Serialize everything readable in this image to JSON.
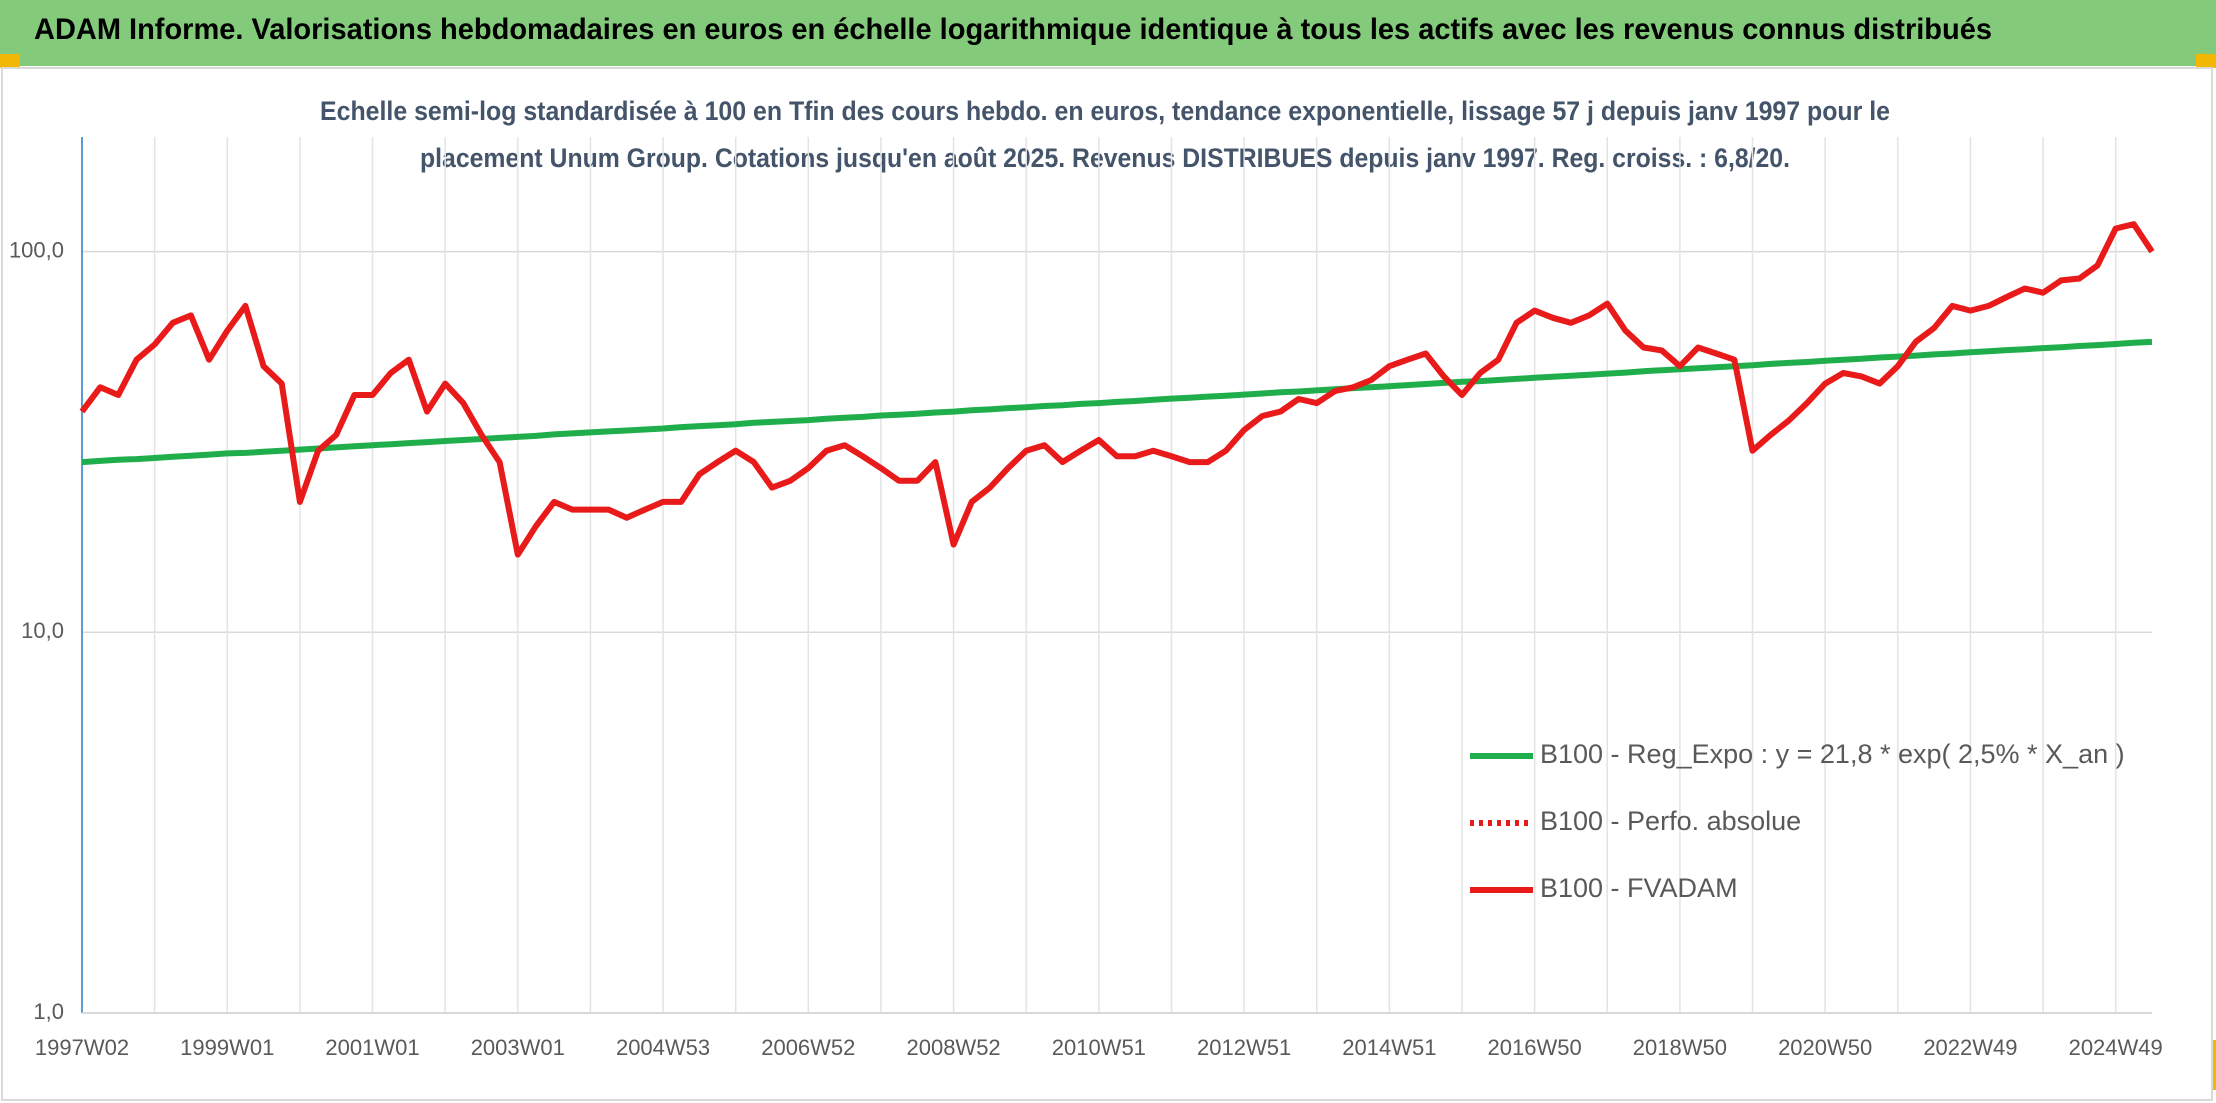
{
  "header": {
    "title": "ADAM Informe. Valorisations hebdomadaires en euros en échelle logarithmique identique à tous les actifs avec les revenus connus distribués"
  },
  "chart_data": {
    "type": "line",
    "subtitle": [
      "Echelle semi-log standardisée à 100 en Tfin des cours hebdo. en euros, tendance exponentielle, lissage 57 j depuis janv 1997 pour le",
      "placement Unum Group. Cotations jusqu'en août 2025. Revenus DISTRIBUES depuis janv 1997. Reg. croiss. : 6,8/20."
    ],
    "log_scale": true,
    "grid": true,
    "legend": "lower right",
    "ylim": [
      1,
      200
    ],
    "yticks": [
      {
        "value": 1,
        "label": "1,0"
      },
      {
        "value": 10,
        "label": "10,0"
      },
      {
        "value": 100,
        "label": "100,0"
      }
    ],
    "categories": [
      "1997W02",
      null,
      null,
      null,
      null,
      null,
      null,
      null,
      "1999W01",
      null,
      null,
      null,
      null,
      null,
      null,
      null,
      "2001W01",
      null,
      null,
      null,
      null,
      null,
      null,
      null,
      "2003W01",
      null,
      null,
      null,
      null,
      null,
      null,
      null,
      "2004W53",
      null,
      null,
      null,
      null,
      null,
      null,
      null,
      "2006W52",
      null,
      null,
      null,
      null,
      null,
      null,
      null,
      "2008W52",
      null,
      null,
      null,
      null,
      null,
      null,
      null,
      "2010W51",
      null,
      null,
      null,
      null,
      null,
      null,
      null,
      "2012W51",
      null,
      null,
      null,
      null,
      null,
      null,
      null,
      "2014W51",
      null,
      null,
      null,
      null,
      null,
      null,
      null,
      "2016W50",
      null,
      null,
      null,
      null,
      null,
      null,
      null,
      "2018W50",
      null,
      null,
      null,
      null,
      null,
      null,
      null,
      "2020W50",
      null,
      null,
      null,
      null,
      null,
      null,
      null,
      "2022W49",
      null,
      null,
      null,
      null,
      null,
      null,
      null,
      "2024W49",
      null,
      null
    ],
    "series": [
      {
        "name": "B100 - Reg_Expo : y = 21,8 * exp( 2,5% *  X_an )",
        "color": "#1fae4b",
        "style": "solid",
        "values": [
          28.0,
          28.2,
          28.4,
          28.5,
          28.7,
          28.9,
          29.1,
          29.3,
          29.5,
          29.6,
          29.8,
          30.0,
          30.2,
          30.4,
          30.6,
          30.8,
          31.0,
          31.2,
          31.4,
          31.6,
          31.8,
          32.0,
          32.2,
          32.4,
          32.6,
          32.8,
          33.1,
          33.3,
          33.5,
          33.7,
          33.9,
          34.1,
          34.3,
          34.6,
          34.8,
          35.0,
          35.2,
          35.5,
          35.7,
          35.9,
          36.1,
          36.4,
          36.6,
          36.8,
          37.1,
          37.3,
          37.5,
          37.8,
          38.0,
          38.3,
          38.5,
          38.8,
          39.0,
          39.3,
          39.5,
          39.8,
          40.0,
          40.3,
          40.5,
          40.8,
          41.1,
          41.3,
          41.6,
          41.8,
          42.1,
          42.4,
          42.7,
          42.9,
          43.2,
          43.5,
          43.8,
          44.0,
          44.3,
          44.6,
          44.9,
          45.2,
          45.5,
          45.7,
          46.0,
          46.3,
          46.6,
          46.9,
          47.2,
          47.5,
          47.8,
          48.1,
          48.5,
          48.8,
          49.1,
          49.4,
          49.7,
          50.0,
          50.3,
          50.7,
          51.0,
          51.3,
          51.7,
          52.0,
          52.3,
          52.7,
          53.0,
          53.3,
          53.7,
          54.0,
          54.4,
          54.7,
          55.1,
          55.4,
          55.8,
          56.1,
          56.5,
          56.8,
          57.2,
          57.6,
          57.9
        ]
      },
      {
        "name": "B100 - Perfo. absolue",
        "color": "#e81a1a",
        "style": "dotted"
      },
      {
        "name": "B100 - FVADAM",
        "color": "#e81a1a",
        "style": "solid",
        "values": [
          38,
          44,
          42,
          52,
          57,
          65,
          68,
          52,
          62,
          72,
          50,
          45,
          22,
          30,
          33,
          42,
          42,
          48,
          52,
          38,
          45,
          40,
          33,
          28,
          16,
          19,
          22,
          21,
          21,
          21,
          20,
          21,
          22,
          22,
          26,
          28,
          30,
          28,
          24,
          25,
          27,
          30,
          31,
          29,
          27,
          25,
          25,
          28,
          17,
          22,
          24,
          27,
          30,
          31,
          28,
          30,
          32,
          29,
          29,
          30,
          29,
          28,
          28,
          30,
          34,
          37,
          38,
          41,
          40,
          43,
          44,
          46,
          50,
          52,
          54,
          47,
          42,
          48,
          52,
          65,
          70,
          67,
          65,
          68,
          73,
          62,
          56,
          55,
          50,
          56,
          54,
          52,
          30,
          33,
          36,
          40,
          45,
          48,
          47,
          45,
          50,
          58,
          63,
          72,
          70,
          72,
          76,
          80,
          78,
          84,
          85,
          92,
          115,
          118,
          100
        ]
      }
    ]
  }
}
